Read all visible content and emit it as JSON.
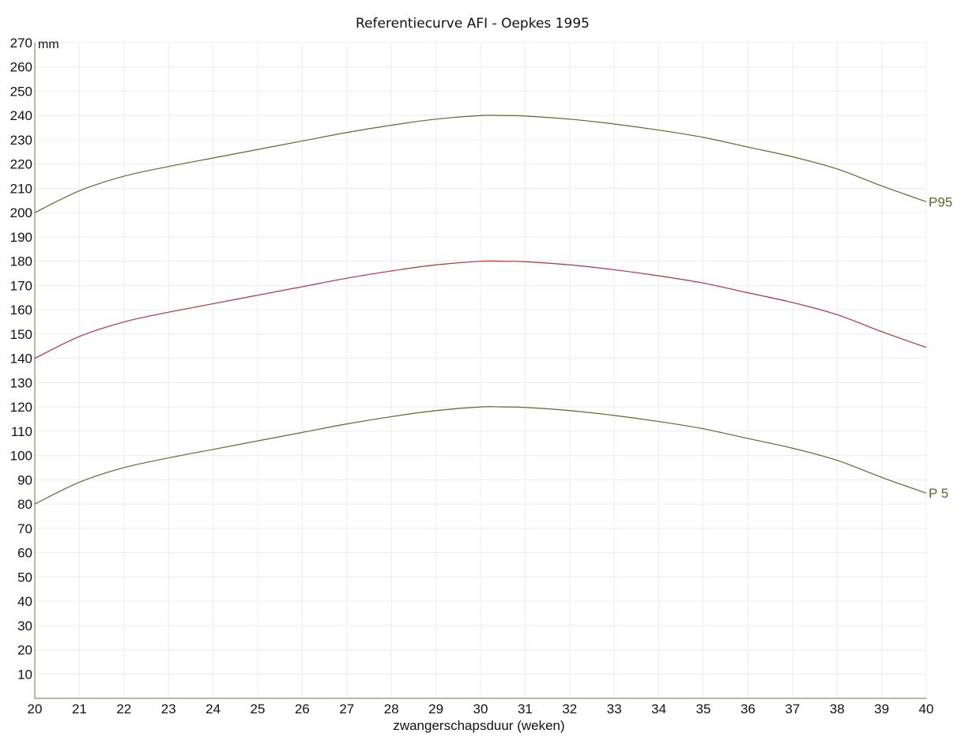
{
  "chart_data": {
    "type": "line",
    "title": "Referentiecurve AFI - Oepkes 1995",
    "xlabel": "zwangerschapsduur (weken)",
    "ylabel": "mm",
    "xlim": [
      20,
      40
    ],
    "ylim": [
      0,
      270
    ],
    "x_ticks": [
      20,
      21,
      22,
      23,
      24,
      25,
      26,
      27,
      28,
      29,
      30,
      31,
      32,
      33,
      34,
      35,
      36,
      37,
      38,
      39,
      40
    ],
    "y_ticks": [
      10,
      20,
      30,
      40,
      50,
      60,
      70,
      80,
      90,
      100,
      110,
      120,
      130,
      140,
      150,
      160,
      170,
      180,
      190,
      200,
      210,
      220,
      230,
      240,
      250,
      260,
      270
    ],
    "grid": true,
    "series": [
      {
        "name": "P95",
        "color": "#5a6b2e",
        "x": [
          20,
          21,
          22,
          23,
          24,
          25,
          26,
          27,
          28,
          29,
          30,
          30.5,
          31,
          32,
          33,
          34,
          35,
          36,
          37,
          38,
          39,
          40
        ],
        "values": [
          200,
          209,
          215,
          219,
          222.5,
          226,
          229.5,
          233,
          236,
          238.5,
          240,
          240,
          239.8,
          238.5,
          236.5,
          234,
          231,
          227,
          223,
          218,
          211,
          204.5
        ]
      },
      {
        "name": "",
        "color": "#b2323a",
        "x": [
          20,
          21,
          22,
          23,
          24,
          25,
          26,
          27,
          28,
          29,
          30,
          30.5,
          31,
          32,
          33,
          34,
          35,
          36,
          37,
          38,
          39,
          40
        ],
        "values": [
          140,
          149,
          155,
          159,
          162.5,
          166,
          169.5,
          173,
          176,
          178.5,
          180,
          180,
          179.8,
          178.5,
          176.5,
          174,
          171,
          167,
          163,
          158,
          151,
          144.5
        ]
      },
      {
        "name": "P 5",
        "color": "#5a6b2e",
        "x": [
          20,
          21,
          22,
          23,
          24,
          25,
          26,
          27,
          28,
          29,
          30,
          30.5,
          31,
          32,
          33,
          34,
          35,
          36,
          37,
          38,
          39,
          40
        ],
        "values": [
          80,
          89,
          95,
          99,
          102.5,
          106,
          109.5,
          113,
          116,
          118.5,
          120,
          120,
          119.8,
          118.5,
          116.5,
          114,
          111,
          107,
          103,
          98,
          91,
          84.5
        ]
      }
    ]
  }
}
